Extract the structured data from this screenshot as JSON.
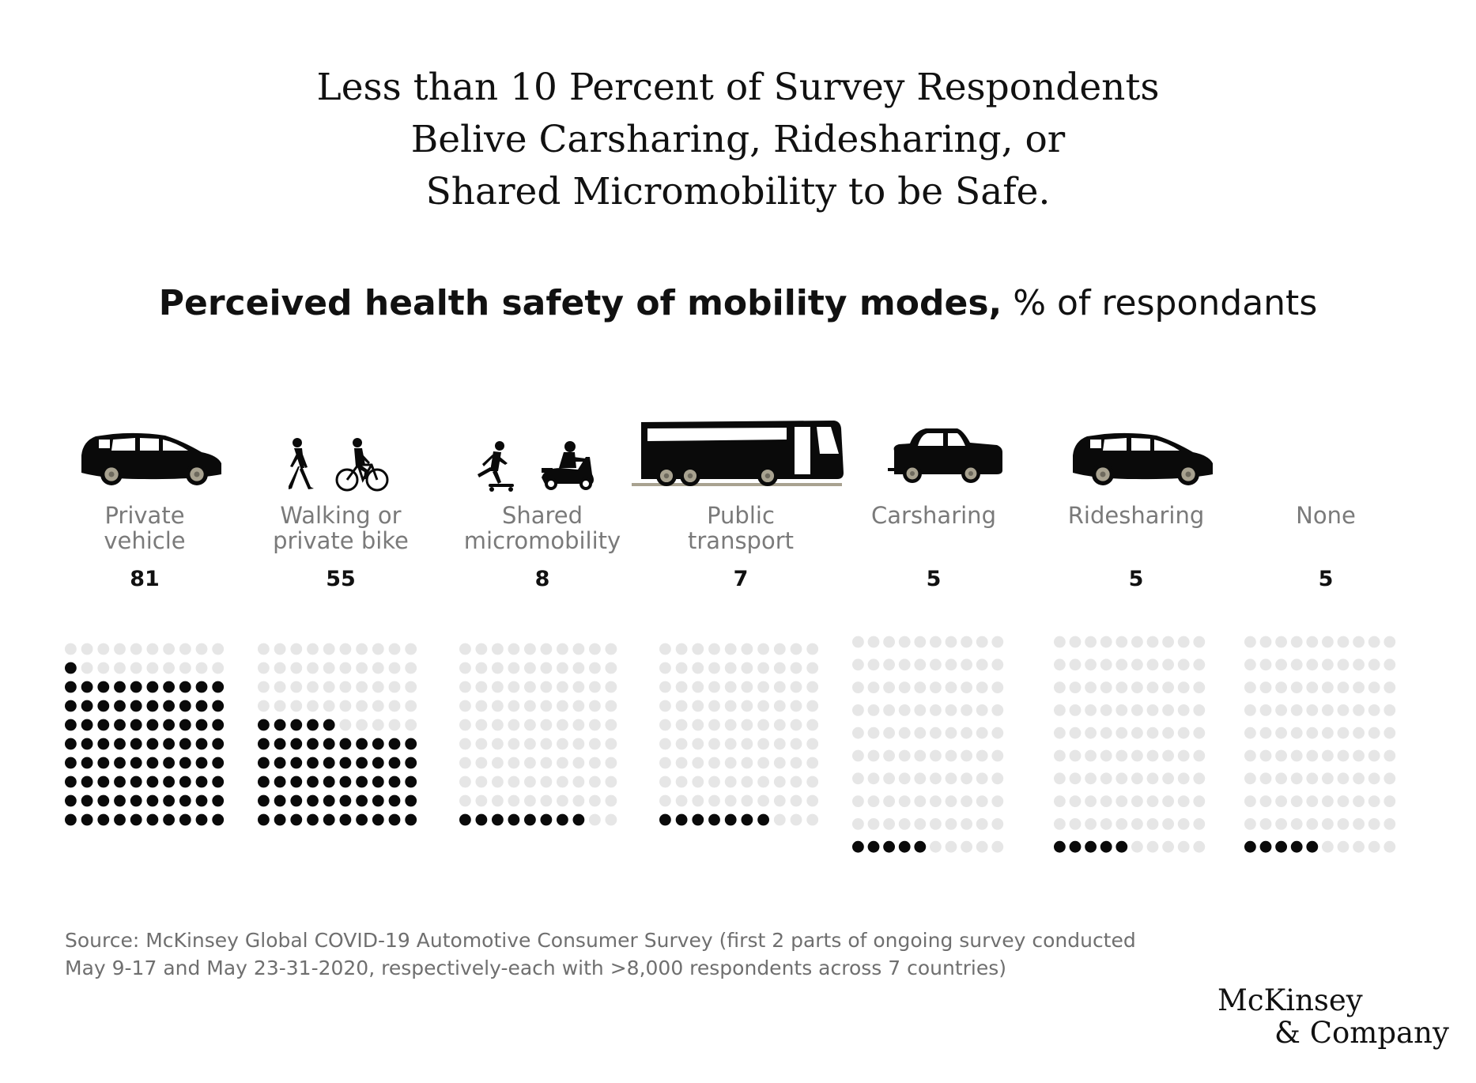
{
  "title_lines": [
    "Less than 10 Percent of Survey Respondents",
    "Belive Carsharing, Ridesharing, or",
    "Shared Micromobility to be Safe."
  ],
  "subtitle": {
    "bold": "Perceived health safety of mobility modes,",
    "normal": " % of respondants"
  },
  "colors": {
    "filled_dot": "#0a0a0a",
    "empty_dot": "#e6e6e6",
    "label": "#7a7a7a",
    "icon": "#0a0a0a",
    "wheel": "#a8a290"
  },
  "chart_data": {
    "type": "waffle",
    "grid": "10x10",
    "unit": "% of respondants",
    "categories": [
      "Private\nvehicle",
      "Walking or\nprivate bike",
      "Shared\nmicromobility",
      "Public\ntransport",
      "Carsharing",
      "Ridesharing",
      "None"
    ],
    "values": [
      81,
      55,
      8,
      7,
      5,
      5,
      5
    ],
    "icons": [
      "car-icon",
      "walking-bike-icon",
      "micromobility-icon",
      "bus-icon",
      "carsharing-car-icon",
      "ridesharing-car-icon",
      ""
    ]
  },
  "source_lines": [
    "Source: McKinsey Global COVID-19 Automotive Consumer Survey (first 2 parts of ongoing survey conducted",
    "May 9-17 and May 23-31-2020, respectively-each with >8,000 respondents across 7 countries)"
  ],
  "logo": {
    "line1": "McKinsey",
    "line2": "& Company"
  }
}
